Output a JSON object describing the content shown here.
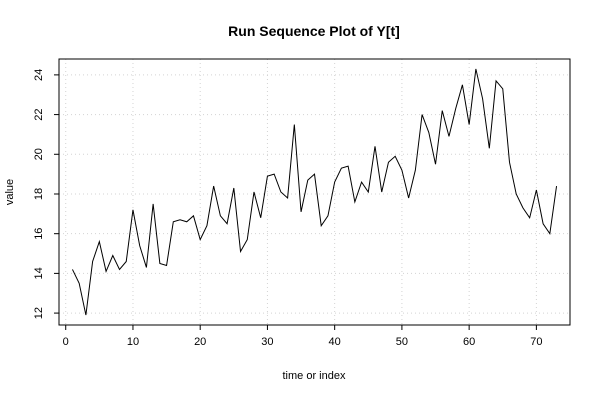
{
  "chart_data": {
    "type": "line",
    "title": "Run Sequence Plot of Y[t]",
    "xlabel": "time or index",
    "ylabel": "value",
    "xlim": [
      -1,
      75
    ],
    "ylim": [
      11.4,
      24.8
    ],
    "xticks": [
      0,
      10,
      20,
      30,
      40,
      50,
      60,
      70
    ],
    "yticks": [
      12,
      14,
      16,
      18,
      20,
      22,
      24
    ],
    "grid": true,
    "series": [
      {
        "x": [
          1,
          2,
          3,
          4,
          5,
          6,
          7,
          8,
          9,
          10,
          11,
          12,
          13,
          14,
          15,
          16,
          17,
          18,
          19,
          20,
          21,
          22,
          23,
          24,
          25,
          26,
          27,
          28,
          29,
          30,
          31,
          32,
          33,
          34,
          35,
          36,
          37,
          38,
          39,
          40,
          41,
          42,
          43,
          44,
          45,
          46,
          47,
          48,
          49,
          50,
          51,
          52,
          53,
          54,
          55,
          56,
          57,
          58,
          59,
          60,
          61,
          62,
          63,
          64,
          65,
          66,
          67,
          68,
          69,
          70,
          71,
          72,
          73
        ],
        "values": [
          14.2,
          13.5,
          11.9,
          14.6,
          15.6,
          14.1,
          14.9,
          14.2,
          14.6,
          17.2,
          15.4,
          14.3,
          17.5,
          14.5,
          14.4,
          16.6,
          16.7,
          16.6,
          16.9,
          15.7,
          16.4,
          18.4,
          16.9,
          16.5,
          18.3,
          15.1,
          15.7,
          18.1,
          16.8,
          18.9,
          19.0,
          18.1,
          17.8,
          21.5,
          17.1,
          18.7,
          19.0,
          16.4,
          16.9,
          18.6,
          19.3,
          19.4,
          17.6,
          18.6,
          18.1,
          20.4,
          18.1,
          19.6,
          19.9,
          19.2,
          17.8,
          19.2,
          22.0,
          21.1,
          19.5,
          22.2,
          20.9,
          22.3,
          23.5,
          21.5,
          24.3,
          22.8,
          20.3,
          23.7,
          23.3,
          19.6,
          18.0,
          17.3,
          16.8,
          18.2,
          16.5,
          16.0,
          18.4
        ],
        "color": "#000000"
      }
    ]
  }
}
